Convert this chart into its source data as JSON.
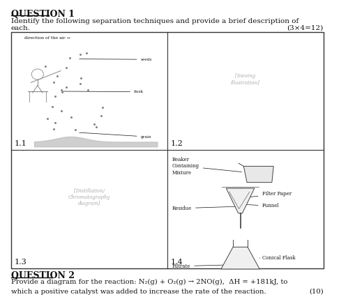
{
  "title": "QUESTION 1",
  "q1_line1": "Identify the following separation techniques and provide a brief description of",
  "q1_line2": "each.",
  "q1_marks": "(3×4=12)",
  "cell11_label": "1.1",
  "cell12_label": "1.2",
  "cell13_label": "1.3",
  "cell14_label": "1.4",
  "q2_title": "QUESTION 2",
  "q2_line1": "Provide a diagram for the reaction: N₂(g) + O₂(g) → 2NO(g),  ΔH = +181kJ, to",
  "q2_line2": "which a positive catalyst was added to increase the rate of the reaction.",
  "q2_marks": "(10)",
  "bg_color": "#ffffff",
  "border_color": "#333333",
  "text_color": "#111111"
}
